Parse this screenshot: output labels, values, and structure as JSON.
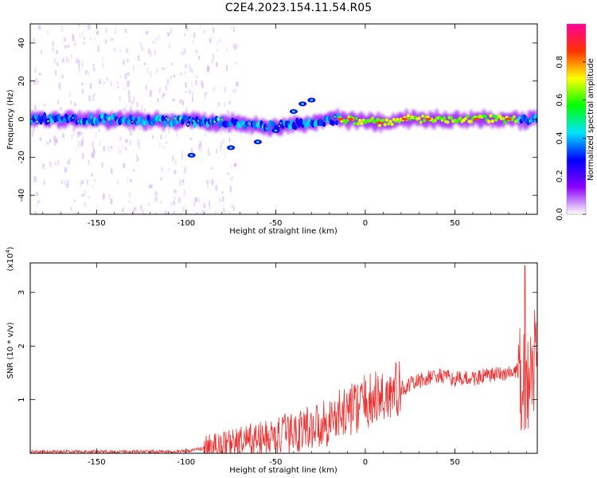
{
  "title": "C2E4.2023.154.11.54.R05",
  "chart_data": [
    {
      "type": "heatmap",
      "xlabel": "Height of straight line (km)",
      "ylabel": "Frequency (Hz)",
      "xlim": [
        -187,
        96
      ],
      "ylim": [
        -50,
        50
      ],
      "x_ticks": [
        -150,
        -100,
        -50,
        0,
        50
      ],
      "y_ticks": [
        -40,
        -20,
        0,
        20,
        40
      ],
      "colorbar": {
        "label": "Normalized spectral amplitude",
        "range": [
          0,
          1
        ],
        "ticks": [
          "0.0",
          "0.2",
          "0.4",
          "0.6",
          "0.8"
        ],
        "colors": [
          "#ffffff",
          "#8a00ff",
          "#0000ff",
          "#00e5ff",
          "#00ff00",
          "#ffff00",
          "#ff3300",
          "#ff0099"
        ]
      },
      "ridge_frequency_hz": [
        {
          "x": -187,
          "y": 0
        },
        {
          "x": -150,
          "y": 0
        },
        {
          "x": -100,
          "y": -1
        },
        {
          "x": -70,
          "y": -2
        },
        {
          "x": -50,
          "y": -4
        },
        {
          "x": -30,
          "y": -2
        },
        {
          "x": -15,
          "y": 0
        },
        {
          "x": 0,
          "y": -1
        },
        {
          "x": 10,
          "y": -2
        },
        {
          "x": 20,
          "y": 0
        },
        {
          "x": 85,
          "y": 0
        },
        {
          "x": 90,
          "y": -1
        },
        {
          "x": 96,
          "y": 1
        }
      ]
    },
    {
      "type": "line",
      "xlabel": "Height of straight line (km)",
      "ylabel": "SNR (10 * v/v)",
      "y_multiplier": "(x10",
      "y_multiplier_exp": "4",
      "y_multiplier_close": ")",
      "xlim": [
        -187,
        96
      ],
      "ylim": [
        0,
        3.55
      ],
      "x_ticks": [
        -150,
        -100,
        -50,
        0,
        50
      ],
      "y_ticks": [
        1,
        2,
        3
      ],
      "color": "#ee3030",
      "series": [
        {
          "x": [
            -187,
            -150,
            -110,
            -100,
            -85,
            -70,
            -60,
            -50,
            -40,
            -30,
            -20,
            -10,
            0,
            10,
            20,
            30,
            40,
            50,
            60,
            70,
            80,
            85,
            90,
            96
          ],
          "y": [
            0.03,
            0.03,
            0.03,
            0.04,
            0.12,
            0.2,
            0.25,
            0.3,
            0.4,
            0.5,
            0.6,
            0.8,
            0.95,
            1.05,
            1.2,
            1.35,
            1.45,
            1.38,
            1.4,
            1.45,
            1.5,
            1.5,
            1.1,
            1.9
          ]
        }
      ]
    }
  ]
}
